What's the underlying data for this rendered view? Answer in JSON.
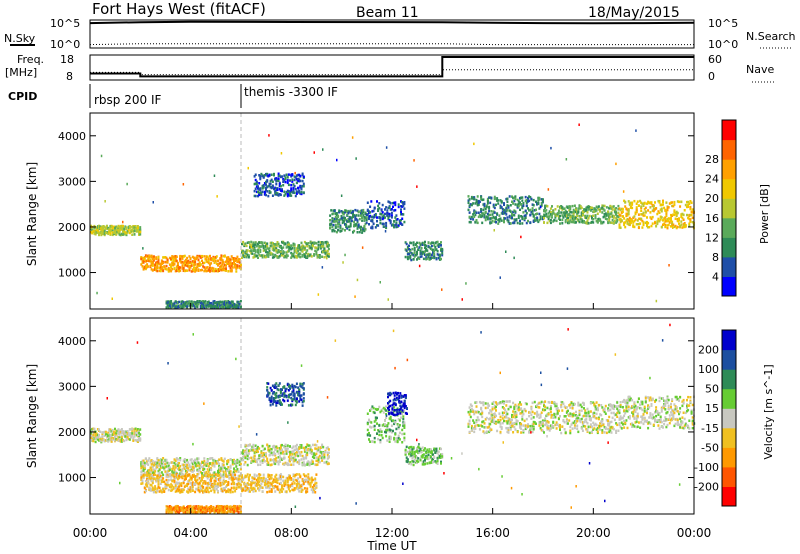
{
  "header": {
    "station": "Fort Hays West (fitACF)",
    "beam": "Beam 11",
    "date": "18/May/2015"
  },
  "noise_panel": {
    "left_label": "N.Sky",
    "right_label": "N.Search",
    "left_ticks": [
      "10^5",
      "10^0"
    ],
    "right_ticks": [
      "10^5",
      "10^0"
    ]
  },
  "freq_panel": {
    "left_label_1": "Freq.",
    "left_label_2": "[MHz]",
    "right_label": "Nave",
    "left_ticks": [
      "18",
      "8"
    ],
    "right_ticks": [
      "60",
      "0"
    ]
  },
  "cpid": {
    "label": "CPID",
    "programs": [
      {
        "name": "rbsp 200 IF",
        "start_hour": 0
      },
      {
        "name": "themis -3300 IF",
        "start_hour": 6
      }
    ]
  },
  "colors": {
    "power": [
      "#0000ff",
      "#1f4fa8",
      "#2e8b57",
      "#5aaa5a",
      "#b8c832",
      "#f0c800",
      "#ffa000",
      "#ff6400",
      "#ff0000"
    ],
    "velocity": [
      "#0000cc",
      "#1c4fa0",
      "#2e8b57",
      "#66cc33",
      "#c8c8c0",
      "#f0c020",
      "#ff9900",
      "#ff5500",
      "#ff0000"
    ],
    "ground_scatter": "#c8c8c0"
  },
  "chart_data": [
    {
      "type": "line",
      "title": "N.Sky / N.Search",
      "x_ticks": [
        "00:00",
        "04:00",
        "08:00",
        "12:00",
        "16:00",
        "20:00",
        "00:00"
      ],
      "xlim_hours": [
        0,
        24
      ],
      "ylim": [
        "10^0",
        "10^5"
      ],
      "series": [
        {
          "name": "N.Sky",
          "x": [
            0,
            2,
            4,
            8,
            12,
            14,
            16,
            18,
            20,
            22,
            24
          ],
          "values": [
            60000,
            90000,
            110000,
            100000,
            95000,
            85000,
            70000,
            60000,
            55000,
            60000,
            70000
          ]
        },
        {
          "name": "N.Search",
          "x": [
            0,
            2,
            4,
            8,
            12,
            14,
            16,
            18,
            20,
            22,
            24
          ],
          "values": [
            2,
            3,
            3,
            3,
            3,
            3,
            2,
            2,
            2,
            2,
            2
          ]
        }
      ]
    },
    {
      "type": "line",
      "title": "Freq. [MHz] / Nave",
      "x": [
        0,
        2,
        2,
        14,
        14,
        24
      ],
      "ylim_freq": [
        8,
        18
      ],
      "ylim_nave": [
        0,
        60
      ],
      "series": [
        {
          "name": "Freq.",
          "values": [
            10.5,
            10.5,
            9.2,
            9.2,
            18,
            18
          ]
        },
        {
          "name": "Nave",
          "values": [
            18,
            18,
            12,
            12,
            25,
            25
          ]
        }
      ]
    },
    {
      "type": "heatmap",
      "title": "Power",
      "xlabel": "",
      "ylabel": "Slant Range [km]",
      "y_ticks": [
        "1000",
        "2000",
        "3000",
        "4000"
      ],
      "ylim": [
        200,
        4500
      ],
      "xlim_hours": [
        0,
        24
      ],
      "colorbar_label": "Power [dB]",
      "colorbar_ticks": [
        "4",
        "8",
        "12",
        "16",
        "20",
        "24",
        "28"
      ],
      "bands": [
        {
          "t0": 0.0,
          "t1": 2.0,
          "r0": 1850,
          "r1": 2050,
          "level": 4
        },
        {
          "t0": 2.0,
          "t1": 6.0,
          "r0": 1050,
          "r1": 1400,
          "level": 6
        },
        {
          "t0": 6.0,
          "t1": 9.5,
          "r0": 1350,
          "r1": 1700,
          "level": 3
        },
        {
          "t0": 9.5,
          "t1": 11.0,
          "r0": 1900,
          "r1": 2400,
          "level": 2
        },
        {
          "t0": 11.0,
          "t1": 12.5,
          "r0": 2000,
          "r1": 2600,
          "level": 1
        },
        {
          "t0": 12.5,
          "t1": 14.0,
          "r0": 1300,
          "r1": 1700,
          "level": 2
        },
        {
          "t0": 15.0,
          "t1": 18.0,
          "r0": 2100,
          "r1": 2700,
          "level": 2
        },
        {
          "t0": 18.0,
          "t1": 21.0,
          "r0": 2100,
          "r1": 2500,
          "level": 3
        },
        {
          "t0": 21.0,
          "t1": 24.0,
          "r0": 2000,
          "r1": 2600,
          "level": 5
        },
        {
          "t0": 6.5,
          "t1": 8.5,
          "r0": 2700,
          "r1": 3200,
          "level": 1
        },
        {
          "t0": 3.0,
          "t1": 6.0,
          "r0": 250,
          "r1": 400,
          "level": 2
        }
      ]
    },
    {
      "type": "heatmap",
      "title": "Velocity",
      "xlabel": "Time UT",
      "ylabel": "Slant Range [km]",
      "x_ticks": [
        "00:00",
        "04:00",
        "08:00",
        "12:00",
        "16:00",
        "20:00",
        "00:00"
      ],
      "y_ticks": [
        "1000",
        "2000",
        "3000",
        "4000"
      ],
      "ylim": [
        200,
        4500
      ],
      "xlim_hours": [
        0,
        24
      ],
      "colorbar_label": "Velocity [m s^-1]",
      "colorbar_ticks": [
        "200",
        "100",
        "50",
        "15",
        "-15",
        "-50",
        "-100",
        "-200"
      ],
      "bands": [
        {
          "t0": 0.0,
          "t1": 2.0,
          "r0": 1800,
          "r1": 2100,
          "level": 4
        },
        {
          "t0": 2.0,
          "t1": 6.0,
          "r0": 1050,
          "r1": 1450,
          "level": 4
        },
        {
          "t0": 6.0,
          "t1": 9.5,
          "r0": 1300,
          "r1": 1750,
          "level": 4
        },
        {
          "t0": 11.0,
          "t1": 12.5,
          "r0": 1800,
          "r1": 2600,
          "level": 3
        },
        {
          "t0": 12.5,
          "t1": 14.0,
          "r0": 1300,
          "r1": 1700,
          "level": 3
        },
        {
          "t0": 15.0,
          "t1": 21.0,
          "r0": 2000,
          "r1": 2700,
          "level": 4
        },
        {
          "t0": 21.0,
          "t1": 24.0,
          "r0": 2100,
          "r1": 2800,
          "level": 4
        },
        {
          "t0": 11.8,
          "t1": 12.6,
          "r0": 2400,
          "r1": 2900,
          "level": 0
        },
        {
          "t0": 7.0,
          "t1": 8.5,
          "r0": 2600,
          "r1": 3100,
          "level": 1
        },
        {
          "t0": 3.0,
          "t1": 6.0,
          "r0": 250,
          "r1": 400,
          "level": 6
        },
        {
          "t0": 2.0,
          "t1": 9.0,
          "r0": 700,
          "r1": 1100,
          "level": 5
        }
      ]
    }
  ],
  "xaxis": {
    "label": "Time UT"
  }
}
